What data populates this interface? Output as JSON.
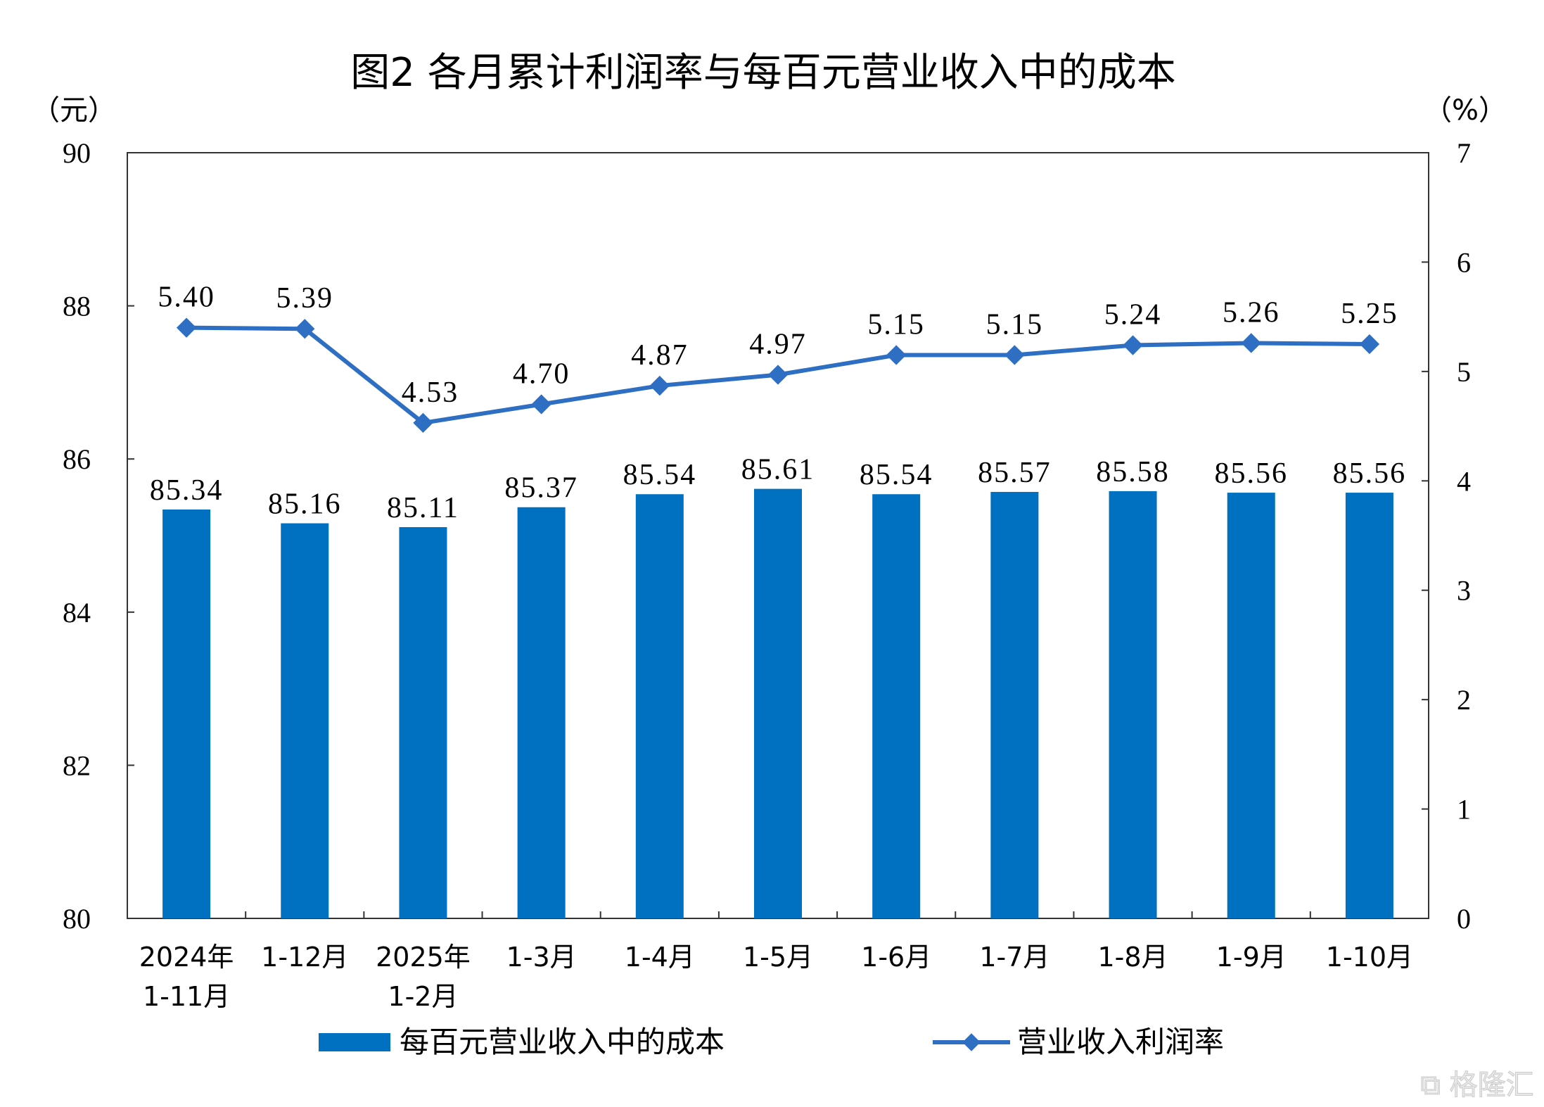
{
  "chart_data": {
    "type": "bar+line",
    "title": "图2  各月累计利润率与每百元营业收入中的成本",
    "left_axis": {
      "unit_label": "（元）",
      "ylim": [
        80,
        90
      ],
      "ticks": [
        "80",
        "82",
        "84",
        "86",
        "88",
        "90"
      ]
    },
    "right_axis": {
      "unit_label": "（%）",
      "ylim": [
        0,
        7
      ],
      "ticks": [
        "0",
        "1",
        "2",
        "3",
        "4",
        "5",
        "6",
        "7"
      ]
    },
    "categories": [
      [
        "2024年",
        "1-11月"
      ],
      [
        "1-12月"
      ],
      [
        "2025年",
        "1-2月"
      ],
      [
        "1-3月"
      ],
      [
        "1-4月"
      ],
      [
        "1-5月"
      ],
      [
        "1-6月"
      ],
      [
        "1-7月"
      ],
      [
        "1-8月"
      ],
      [
        "1-9月"
      ],
      [
        "1-10月"
      ]
    ],
    "series": [
      {
        "name": "每百元营业收入中的成本",
        "kind": "bar",
        "axis": "left",
        "color": "#0070C0",
        "values": [
          85.34,
          85.16,
          85.11,
          85.37,
          85.54,
          85.61,
          85.54,
          85.57,
          85.58,
          85.56,
          85.56
        ],
        "labels": [
          "85.34",
          "85.16",
          "85.11",
          "85.37",
          "85.54",
          "85.61",
          "85.54",
          "85.57",
          "85.58",
          "85.56",
          "85.56"
        ]
      },
      {
        "name": "营业收入利润率",
        "kind": "line",
        "axis": "right",
        "color": "#2E6FC4",
        "values": [
          5.4,
          5.39,
          4.53,
          4.7,
          4.87,
          4.97,
          5.15,
          5.15,
          5.24,
          5.26,
          5.25
        ],
        "labels": [
          "5.40",
          "5.39",
          "4.53",
          "4.70",
          "4.87",
          "4.97",
          "5.15",
          "5.15",
          "5.24",
          "5.26",
          "5.25"
        ]
      }
    ],
    "legend_position": "bottom",
    "grid": false
  },
  "watermark": "格隆汇"
}
